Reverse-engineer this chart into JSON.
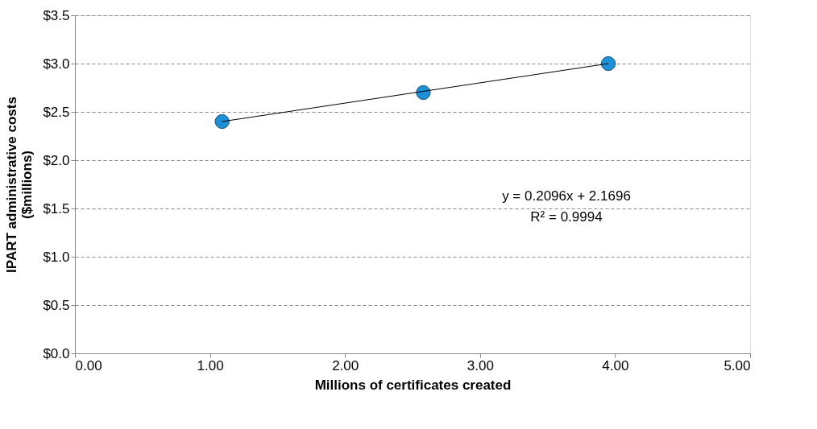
{
  "chart_data": {
    "type": "scatter",
    "xlabel": "Millions of certificates created",
    "ylabel": "IPART administrative costs ($millions)",
    "series": [
      {
        "color": "#1e90d8",
        "x": [
          1.09,
          2.58,
          3.95
        ],
        "values": [
          2.4,
          2.7,
          3.0
        ],
        "marker": "circle"
      },
      {
        "type": "line",
        "color": "#000000",
        "x": [
          1.09,
          3.95
        ],
        "values": [
          2.4,
          3.0
        ],
        "line_style": "solid"
      }
    ],
    "annotations": [
      "y = 0.2096x + 2.1696",
      "R² = 0.9994"
    ],
    "xlim": [
      0,
      5
    ],
    "ylim": [
      0,
      3.5
    ],
    "xticks": [
      {
        "value": 0,
        "label": "0.00"
      },
      {
        "value": 1,
        "label": "1.00"
      },
      {
        "value": 2,
        "label": "2.00"
      },
      {
        "value": 3,
        "label": "3.00"
      },
      {
        "value": 4,
        "label": "4.00"
      },
      {
        "value": 5,
        "label": "5.00"
      }
    ],
    "yticks": [
      {
        "value": 0,
        "label": "$0.0"
      },
      {
        "value": 0.5,
        "label": "$0.5"
      },
      {
        "value": 1,
        "label": "$1.0"
      },
      {
        "value": 1.5,
        "label": "$1.5"
      },
      {
        "value": 2,
        "label": "$2.0"
      },
      {
        "value": 2.5,
        "label": "$2.5"
      },
      {
        "value": 3,
        "label": "$3.0"
      },
      {
        "value": 3.5,
        "label": "$3.5"
      }
    ],
    "grid": "y"
  }
}
